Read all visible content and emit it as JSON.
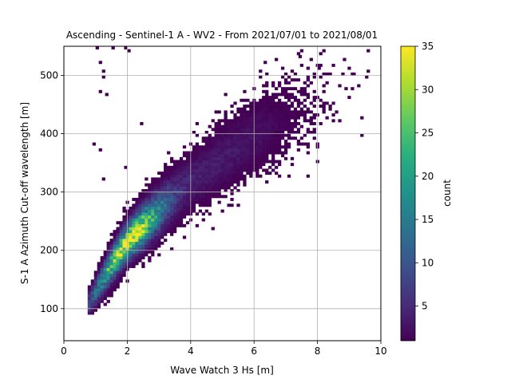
{
  "chart_data": {
    "type": "heatmap",
    "title": "Ascending - Sentinel-1 A - WV2 - From 2021/07/01 to 2021/08/01",
    "xlabel": "Wave Watch 3 Hs [m]",
    "ylabel": "S-1 A Azimuth Cut-off wavelength [m]",
    "xlim": [
      0,
      10
    ],
    "ylim": [
      45,
      550
    ],
    "xticks": [
      0,
      2,
      4,
      6,
      8,
      10
    ],
    "yticks": [
      100,
      200,
      300,
      400,
      500
    ],
    "grid": true,
    "bin_width_x": 0.1,
    "bin_height_y": 5,
    "colormap": "viridis",
    "colorbar": {
      "label": "count",
      "range": [
        1,
        35
      ],
      "ticks": [
        5,
        10,
        15,
        20,
        25,
        30,
        35
      ]
    },
    "density_model": {
      "description_source": "visual estimate of 2D histogram",
      "ridge": [
        {
          "x": 0.8,
          "y": 110
        },
        {
          "x": 1.5,
          "y": 175
        },
        {
          "x": 2.0,
          "y": 215
        },
        {
          "x": 3.0,
          "y": 268
        },
        {
          "x": 4.0,
          "y": 318
        },
        {
          "x": 5.0,
          "y": 358
        },
        {
          "x": 6.0,
          "y": 395
        },
        {
          "x": 7.0,
          "y": 428
        },
        {
          "x": 8.0,
          "y": 455
        },
        {
          "x": 9.5,
          "y": 490
        }
      ],
      "peak_count": 33,
      "peak_at": {
        "x": 2.0,
        "y": 210
      }
    }
  }
}
